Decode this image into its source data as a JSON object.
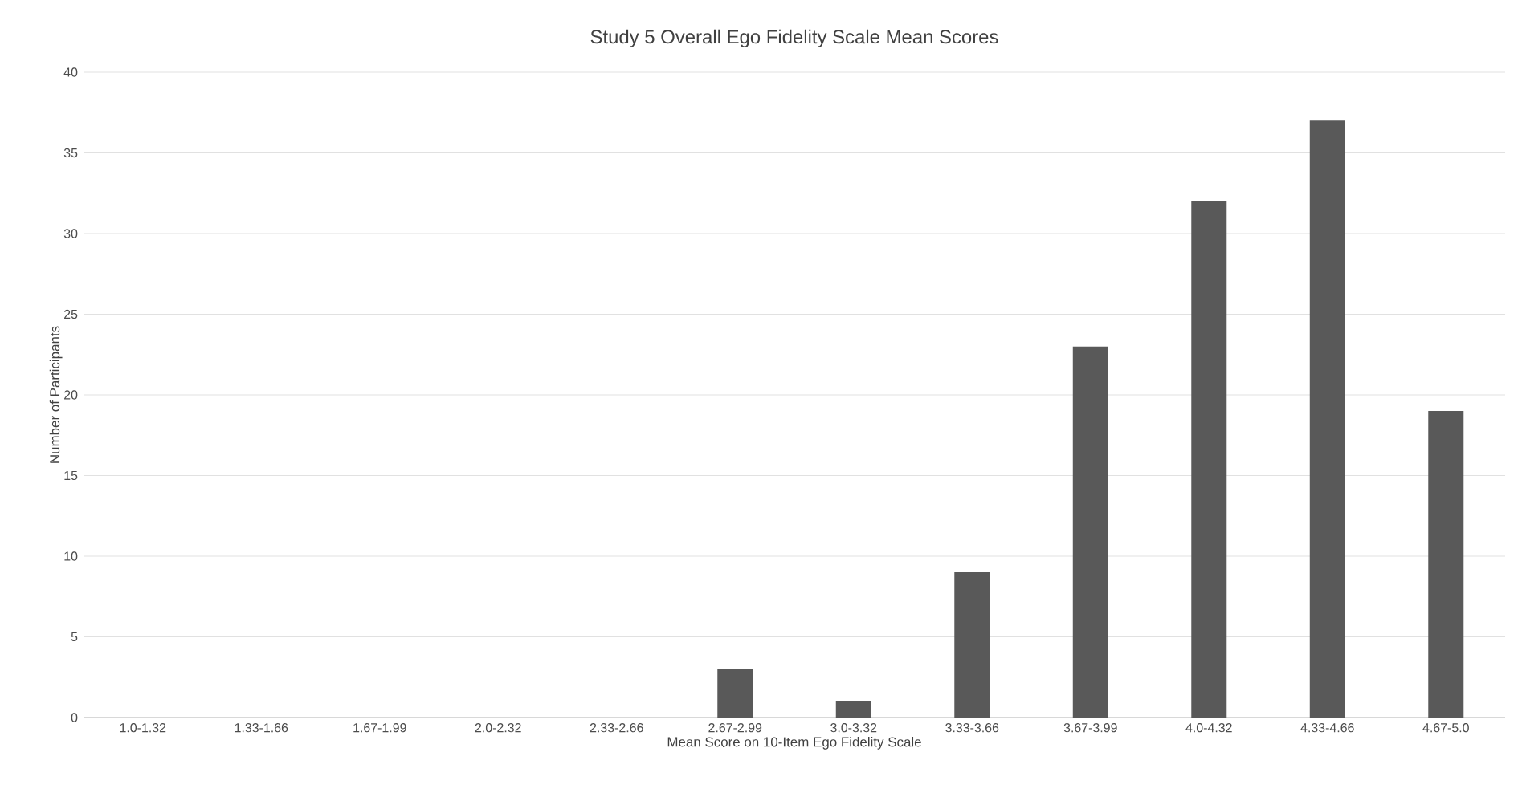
{
  "chart_data": {
    "type": "bar",
    "title": "Study 5 Overall Ego Fidelity Scale Mean Scores",
    "xlabel": "Mean Score on 10-Item Ego Fidelity Scale",
    "ylabel": "Number of Participants",
    "categories": [
      "1.0-1.32",
      "1.33-1.66",
      "1.67-1.99",
      "2.0-2.32",
      "2.33-2.66",
      "2.67-2.99",
      "3.0-3.32",
      "3.33-3.66",
      "3.67-3.99",
      "4.0-4.32",
      "4.33-4.66",
      "4.67-5.0"
    ],
    "values": [
      0,
      0,
      0,
      0,
      0,
      3,
      1,
      9,
      23,
      32,
      37,
      19
    ],
    "color": "#595959",
    "ylim": [
      0,
      40
    ],
    "yticks": [
      0,
      5,
      10,
      15,
      20,
      25,
      30,
      35,
      40
    ],
    "grid": "y"
  }
}
